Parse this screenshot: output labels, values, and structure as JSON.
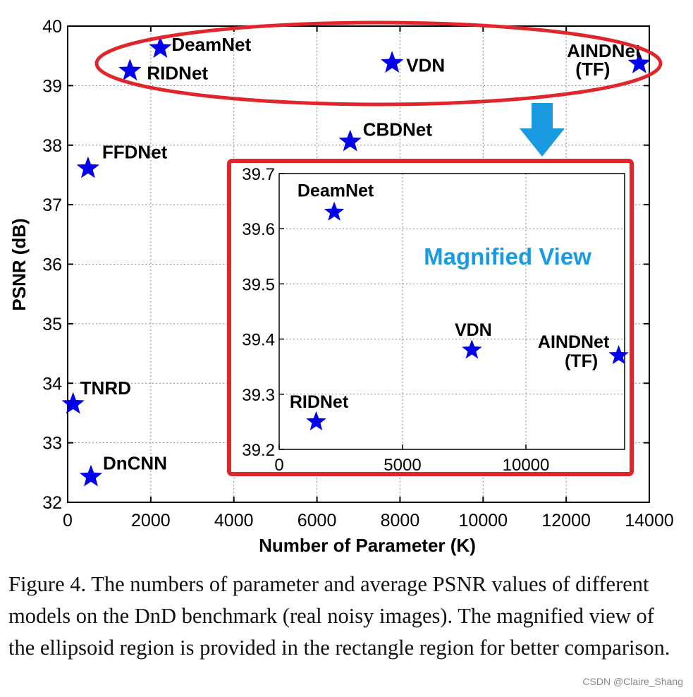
{
  "chart_data": {
    "type": "scatter",
    "xlabel": "Number of Parameter (K)",
    "ylabel": "PSNR (dB)",
    "xlim": [
      0,
      14000
    ],
    "ylim": [
      32,
      40
    ],
    "x_ticks": [
      "0",
      "2000",
      "4000",
      "6000",
      "8000",
      "10000",
      "12000",
      "14000"
    ],
    "y_ticks": [
      "32",
      "33",
      "34",
      "35",
      "36",
      "37",
      "38",
      "39",
      "40"
    ],
    "grid": true,
    "marker": "star",
    "marker_color": "#0000ee",
    "points": [
      {
        "label": "TNRD",
        "x": 130,
        "y": 33.65
      },
      {
        "label": "DnCNN",
        "x": 560,
        "y": 32.43
      },
      {
        "label": "FFDNet",
        "x": 490,
        "y": 37.61
      },
      {
        "label": "RIDNet",
        "x": 1500,
        "y": 39.25
      },
      {
        "label": "DeamNet",
        "x": 2230,
        "y": 39.63
      },
      {
        "label": "CBDNet",
        "x": 6800,
        "y": 38.06
      },
      {
        "label": "VDN",
        "x": 7810,
        "y": 39.38
      },
      {
        "label": "AINDNet\n(TF)",
        "x": 13760,
        "y": 39.37
      }
    ],
    "highlight_color": "#e0262a",
    "inset": {
      "title": "Magnified View",
      "title_color": "#1a9ae0",
      "xlim": [
        0,
        14000
      ],
      "ylim": [
        39.2,
        39.7
      ],
      "x_ticks": [
        "0",
        "5000",
        "10000"
      ],
      "y_ticks": [
        "39.2",
        "39.3",
        "39.4",
        "39.5",
        "39.6",
        "39.7"
      ],
      "points": [
        {
          "label": "DeamNet",
          "x": 2230,
          "y": 39.63
        },
        {
          "label": "RIDNet",
          "x": 1500,
          "y": 39.25
        },
        {
          "label": "VDN",
          "x": 7810,
          "y": 39.38
        },
        {
          "label": "AINDNet\n(TF)",
          "x": 13760,
          "y": 39.37
        }
      ]
    },
    "arrow_color": "#1a9ae0"
  },
  "caption": "Figure 4. The numbers of parameter and average PSNR values of different models on the DnD benchmark (real noisy images). The magnified view of the ellipsoid region is provided in the rectangle region for better comparison.",
  "watermark": "CSDN @Claire_Shang"
}
